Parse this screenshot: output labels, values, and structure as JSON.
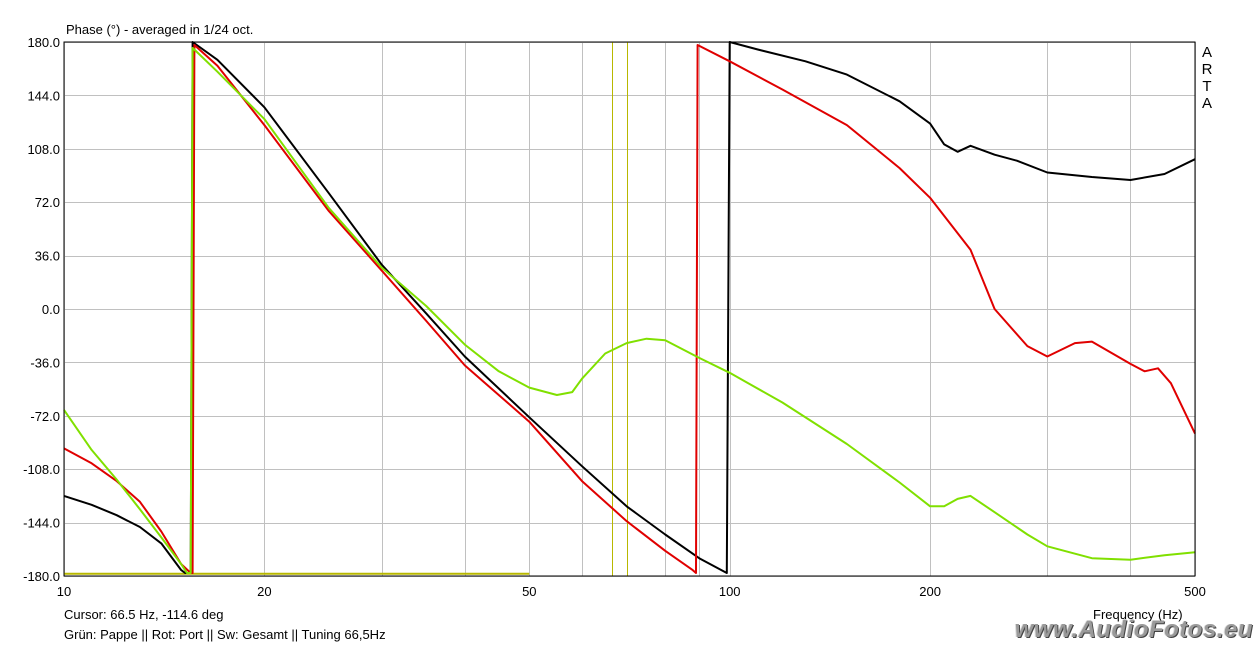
{
  "title": "Phase (°) - averaged in 1/24 oct.",
  "cursor_readout": "Cursor: 66.5 Hz, -114.6 deg",
  "legend_text": "Grün: Pappe  ||  Rot:  Port  ||  Sw: Gesamt  ||  Tuning 66,5Hz",
  "brand_letters": [
    "A",
    "R",
    "T",
    "A"
  ],
  "watermark": "www.AudioFotos.eu",
  "colors": {
    "background": "#ffffff",
    "grid": "#c0c0c0",
    "cursor": "#b8b800",
    "black_series": "#000000",
    "red_series": "#e00000",
    "green_series": "#80e000"
  },
  "chart_data": {
    "type": "line",
    "xlabel": "Frequency (Hz)",
    "ylabel": "Phase (°)",
    "xscale": "log",
    "xlim": [
      10,
      500
    ],
    "ylim": [
      -180,
      180
    ],
    "x_ticks": [
      10,
      20,
      50,
      100,
      200,
      500
    ],
    "x_grid": [
      10,
      20,
      30,
      40,
      50,
      60,
      70,
      80,
      90,
      100,
      200,
      300,
      400,
      500
    ],
    "y_ticks": [
      "180.0",
      "144.0",
      "108.0",
      "72.0",
      "36.0",
      "0.0",
      "-36.0",
      "-72.0",
      "-108.0",
      "-144.0",
      "-180.0"
    ],
    "grid": true,
    "cursors": [
      66.5,
      70
    ],
    "baseline": {
      "y": -178.5,
      "x_from": 10,
      "x_to": 50
    },
    "series": [
      {
        "color_key": "black_series",
        "points": [
          [
            10,
            -126
          ],
          [
            11,
            -132
          ],
          [
            12,
            -139
          ],
          [
            13,
            -147
          ],
          [
            14,
            -158
          ],
          [
            15,
            -176
          ],
          [
            15.2,
            -178
          ],
          [
            15.5,
            -178
          ],
          [
            15.6,
            180
          ],
          [
            17,
            168
          ],
          [
            20,
            136
          ],
          [
            25,
            78
          ],
          [
            30,
            30
          ],
          [
            35,
            -3
          ],
          [
            40,
            -32
          ],
          [
            50,
            -73
          ],
          [
            60,
            -106
          ],
          [
            70,
            -133
          ],
          [
            80,
            -152
          ],
          [
            90,
            -168
          ],
          [
            99,
            -178
          ],
          [
            100,
            180
          ],
          [
            110,
            175
          ],
          [
            130,
            167
          ],
          [
            150,
            158
          ],
          [
            180,
            140
          ],
          [
            200,
            125
          ],
          [
            210,
            111
          ],
          [
            220,
            106
          ],
          [
            230,
            110
          ],
          [
            250,
            104
          ],
          [
            270,
            100
          ],
          [
            300,
            92
          ],
          [
            350,
            89
          ],
          [
            400,
            87
          ],
          [
            450,
            91
          ],
          [
            500,
            101
          ]
        ]
      },
      {
        "color_key": "red_series",
        "points": [
          [
            10,
            -94
          ],
          [
            11,
            -104
          ],
          [
            12,
            -116
          ],
          [
            13,
            -130
          ],
          [
            14,
            -150
          ],
          [
            15,
            -172
          ],
          [
            15.5,
            -178
          ],
          [
            15.6,
            -178
          ],
          [
            15.7,
            178
          ],
          [
            17,
            164
          ],
          [
            20,
            124
          ],
          [
            25,
            66
          ],
          [
            30,
            26
          ],
          [
            35,
            -8
          ],
          [
            40,
            -38
          ],
          [
            50,
            -76
          ],
          [
            60,
            -116
          ],
          [
            70,
            -143
          ],
          [
            80,
            -163
          ],
          [
            88,
            -176
          ],
          [
            89,
            -178
          ],
          [
            89.5,
            178
          ],
          [
            100,
            167
          ],
          [
            120,
            148
          ],
          [
            150,
            124
          ],
          [
            180,
            95
          ],
          [
            200,
            75
          ],
          [
            230,
            40
          ],
          [
            250,
            0
          ],
          [
            280,
            -25
          ],
          [
            300,
            -32
          ],
          [
            330,
            -23
          ],
          [
            350,
            -22
          ],
          [
            400,
            -37
          ],
          [
            420,
            -42
          ],
          [
            440,
            -40
          ],
          [
            460,
            -50
          ],
          [
            500,
            -84
          ]
        ]
      },
      {
        "color_key": "green_series",
        "points": [
          [
            10,
            -68
          ],
          [
            11,
            -95
          ],
          [
            12,
            -115
          ],
          [
            13,
            -135
          ],
          [
            14,
            -154
          ],
          [
            15,
            -172
          ],
          [
            15.3,
            -178
          ],
          [
            15.5,
            -178
          ],
          [
            15.6,
            176
          ],
          [
            17,
            160
          ],
          [
            20,
            128
          ],
          [
            25,
            68
          ],
          [
            30,
            28
          ],
          [
            35,
            2
          ],
          [
            40,
            -24
          ],
          [
            45,
            -42
          ],
          [
            50,
            -53
          ],
          [
            55,
            -58
          ],
          [
            58,
            -56
          ],
          [
            60,
            -47
          ],
          [
            65,
            -30
          ],
          [
            70,
            -23
          ],
          [
            75,
            -20
          ],
          [
            80,
            -21
          ],
          [
            90,
            -33
          ],
          [
            100,
            -43
          ],
          [
            120,
            -63
          ],
          [
            150,
            -91
          ],
          [
            180,
            -117
          ],
          [
            200,
            -133
          ],
          [
            210,
            -133
          ],
          [
            220,
            -128
          ],
          [
            230,
            -126
          ],
          [
            250,
            -137
          ],
          [
            280,
            -152
          ],
          [
            300,
            -160
          ],
          [
            350,
            -168
          ],
          [
            400,
            -169
          ],
          [
            450,
            -166
          ],
          [
            500,
            -164
          ]
        ]
      }
    ]
  }
}
